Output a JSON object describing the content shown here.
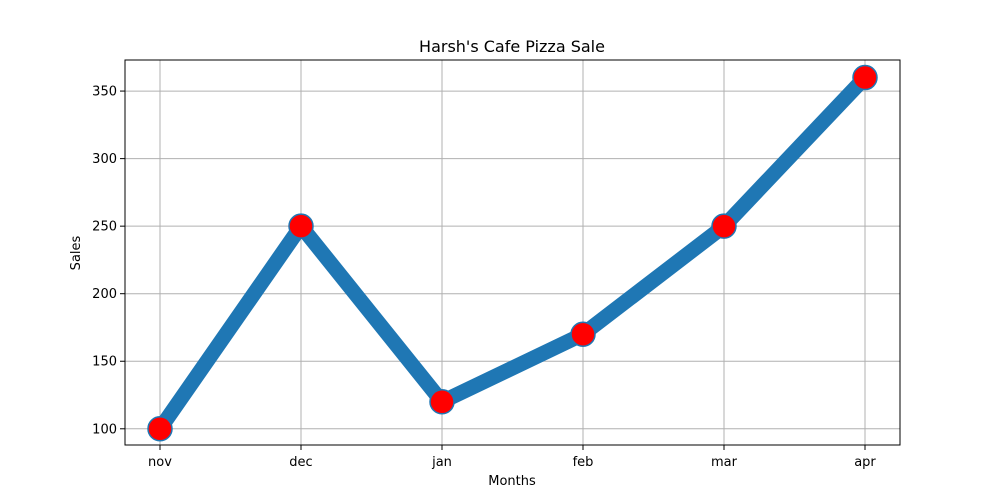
{
  "chart_data": {
    "type": "line",
    "title": "Harsh's Cafe Pizza Sale",
    "xlabel": "Months",
    "ylabel": "Sales",
    "categories": [
      "nov",
      "dec",
      "jan",
      "feb",
      "mar",
      "apr"
    ],
    "series": [
      {
        "values": [
          100,
          250,
          120,
          170,
          250,
          360
        ]
      }
    ],
    "yticks": [
      "100",
      "150",
      "200",
      "250",
      "300",
      "350"
    ],
    "ylim": [
      88,
      373
    ],
    "grid": true,
    "colors": {
      "line": "#1f77b4",
      "marker_fill": "#ff0000",
      "marker_edge": "#1f77b4",
      "grid": "#b0b0b0"
    }
  }
}
